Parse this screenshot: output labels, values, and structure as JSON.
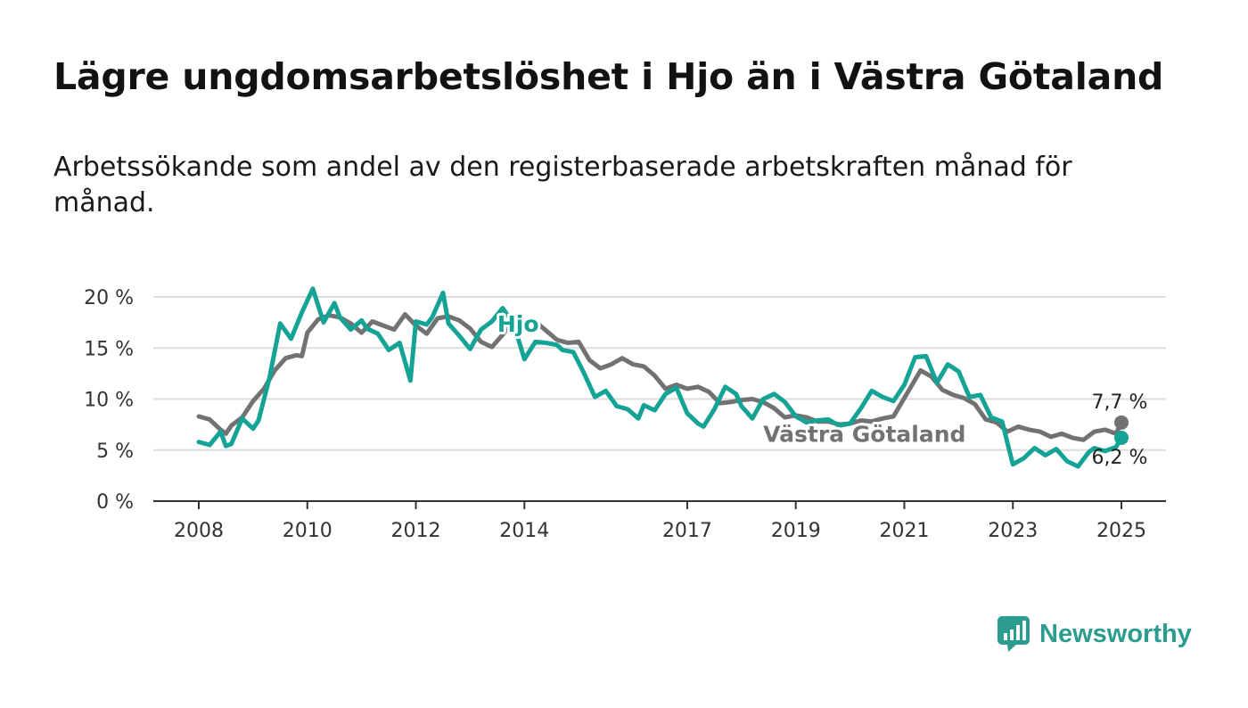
{
  "title": "Lägre ungdomsarbetslöshet i Hjo än i Västra Götaland",
  "subtitle": "Arbetssökande som andel av den registerbaserade arbetskraften månad för månad.",
  "brand": {
    "name": "Newsworthy",
    "color": "#2a9d8f",
    "icon": "bar-chart-speech-bubble-icon"
  },
  "colors": {
    "hjo": "#14a395",
    "vg": "#727272",
    "grid": "#dddddd",
    "axis": "#333333"
  },
  "chart_data": {
    "type": "line",
    "title": "Lägre ungdomsarbetslöshet i Hjo än i Västra Götaland",
    "xlabel": "",
    "ylabel": "",
    "x_range": [
      2008.0,
      2025.0
    ],
    "ylim": [
      0,
      20
    ],
    "y_ticks": [
      0,
      5,
      10,
      15,
      20
    ],
    "y_tick_labels": [
      "0 %",
      "5 %",
      "10 %",
      "15 %",
      "20 %"
    ],
    "x_ticks": [
      2008,
      2010,
      2012,
      2014,
      2017,
      2019,
      2021,
      2023,
      2025
    ],
    "x_tick_labels": [
      "2008",
      "2010",
      "2012",
      "2014",
      "2017",
      "2019",
      "2021",
      "2023",
      "2025"
    ],
    "grid": true,
    "series": [
      {
        "name": "Västra Götaland",
        "label": "Västra Götaland",
        "end_label": "7,7 %",
        "points": [
          [
            2008.0,
            8.3
          ],
          [
            2008.2,
            8.0
          ],
          [
            2008.4,
            7.0
          ],
          [
            2008.5,
            6.6
          ],
          [
            2008.6,
            7.4
          ],
          [
            2008.8,
            8.2
          ],
          [
            2009.0,
            9.8
          ],
          [
            2009.2,
            11.0
          ],
          [
            2009.4,
            12.8
          ],
          [
            2009.6,
            14.0
          ],
          [
            2009.8,
            14.3
          ],
          [
            2009.9,
            14.2
          ],
          [
            2010.0,
            16.5
          ],
          [
            2010.2,
            17.8
          ],
          [
            2010.4,
            18.2
          ],
          [
            2010.6,
            18.0
          ],
          [
            2010.8,
            17.4
          ],
          [
            2011.0,
            16.5
          ],
          [
            2011.2,
            17.6
          ],
          [
            2011.4,
            17.2
          ],
          [
            2011.6,
            16.8
          ],
          [
            2011.8,
            18.3
          ],
          [
            2012.0,
            17.2
          ],
          [
            2012.2,
            16.4
          ],
          [
            2012.4,
            17.9
          ],
          [
            2012.6,
            18.1
          ],
          [
            2012.8,
            17.7
          ],
          [
            2013.0,
            16.9
          ],
          [
            2013.2,
            15.6
          ],
          [
            2013.4,
            15.1
          ],
          [
            2013.6,
            16.3
          ],
          [
            2013.8,
            17.7
          ],
          [
            2014.0,
            17.4
          ],
          [
            2014.2,
            17.6
          ],
          [
            2014.4,
            16.7
          ],
          [
            2014.6,
            15.8
          ],
          [
            2014.8,
            15.5
          ],
          [
            2015.0,
            15.6
          ],
          [
            2015.2,
            13.8
          ],
          [
            2015.4,
            13.0
          ],
          [
            2015.6,
            13.4
          ],
          [
            2015.8,
            14.0
          ],
          [
            2016.0,
            13.4
          ],
          [
            2016.2,
            13.2
          ],
          [
            2016.4,
            12.3
          ],
          [
            2016.6,
            11.0
          ],
          [
            2016.8,
            11.4
          ],
          [
            2017.0,
            11.0
          ],
          [
            2017.2,
            11.2
          ],
          [
            2017.4,
            10.7
          ],
          [
            2017.6,
            9.6
          ],
          [
            2017.8,
            9.7
          ],
          [
            2018.0,
            9.9
          ],
          [
            2018.2,
            10.0
          ],
          [
            2018.4,
            9.7
          ],
          [
            2018.6,
            9.1
          ],
          [
            2018.8,
            8.2
          ],
          [
            2019.0,
            8.4
          ],
          [
            2019.2,
            8.2
          ],
          [
            2019.4,
            7.8
          ],
          [
            2019.6,
            7.8
          ],
          [
            2019.8,
            7.5
          ],
          [
            2020.0,
            7.6
          ],
          [
            2020.2,
            7.9
          ],
          [
            2020.4,
            7.8
          ],
          [
            2020.6,
            8.1
          ],
          [
            2020.8,
            8.3
          ],
          [
            2020.9,
            9.2
          ],
          [
            2021.1,
            11.0
          ],
          [
            2021.3,
            12.8
          ],
          [
            2021.5,
            12.2
          ],
          [
            2021.7,
            10.9
          ],
          [
            2021.9,
            10.4
          ],
          [
            2022.1,
            10.1
          ],
          [
            2022.3,
            9.5
          ],
          [
            2022.5,
            8.0
          ],
          [
            2022.7,
            7.7
          ],
          [
            2022.9,
            6.8
          ],
          [
            2023.1,
            7.3
          ],
          [
            2023.3,
            7.0
          ],
          [
            2023.5,
            6.8
          ],
          [
            2023.7,
            6.3
          ],
          [
            2023.9,
            6.6
          ],
          [
            2024.1,
            6.2
          ],
          [
            2024.3,
            6.0
          ],
          [
            2024.5,
            6.8
          ],
          [
            2024.7,
            7.0
          ],
          [
            2024.9,
            6.6
          ],
          [
            2025.0,
            7.7
          ]
        ]
      },
      {
        "name": "Hjo",
        "label": "Hjo",
        "end_label": "6,2 %",
        "points": [
          [
            2008.0,
            5.8
          ],
          [
            2008.2,
            5.5
          ],
          [
            2008.4,
            6.8
          ],
          [
            2008.5,
            5.4
          ],
          [
            2008.6,
            5.6
          ],
          [
            2008.8,
            8.1
          ],
          [
            2009.0,
            7.1
          ],
          [
            2009.1,
            7.9
          ],
          [
            2009.3,
            12.0
          ],
          [
            2009.5,
            17.4
          ],
          [
            2009.7,
            15.9
          ],
          [
            2009.9,
            18.5
          ],
          [
            2010.1,
            20.8
          ],
          [
            2010.3,
            17.5
          ],
          [
            2010.5,
            19.4
          ],
          [
            2010.6,
            18.0
          ],
          [
            2010.8,
            16.8
          ],
          [
            2011.0,
            17.7
          ],
          [
            2011.1,
            16.9
          ],
          [
            2011.3,
            16.4
          ],
          [
            2011.5,
            14.8
          ],
          [
            2011.7,
            15.5
          ],
          [
            2011.9,
            11.8
          ],
          [
            2012.0,
            17.6
          ],
          [
            2012.2,
            17.3
          ],
          [
            2012.3,
            18.0
          ],
          [
            2012.5,
            20.4
          ],
          [
            2012.6,
            17.4
          ],
          [
            2012.8,
            16.2
          ],
          [
            2013.0,
            14.9
          ],
          [
            2013.2,
            16.8
          ],
          [
            2013.4,
            17.6
          ],
          [
            2013.6,
            18.9
          ],
          [
            2013.8,
            17.4
          ],
          [
            2014.0,
            13.9
          ],
          [
            2014.2,
            15.6
          ],
          [
            2014.4,
            15.5
          ],
          [
            2014.6,
            15.3
          ],
          [
            2014.7,
            14.8
          ],
          [
            2014.9,
            14.6
          ],
          [
            2015.1,
            12.5
          ],
          [
            2015.3,
            10.2
          ],
          [
            2015.5,
            10.8
          ],
          [
            2015.7,
            9.3
          ],
          [
            2015.9,
            9.0
          ],
          [
            2016.1,
            8.1
          ],
          [
            2016.2,
            9.4
          ],
          [
            2016.4,
            8.9
          ],
          [
            2016.6,
            10.5
          ],
          [
            2016.8,
            11.1
          ],
          [
            2017.0,
            8.6
          ],
          [
            2017.2,
            7.6
          ],
          [
            2017.3,
            7.3
          ],
          [
            2017.5,
            9.0
          ],
          [
            2017.7,
            11.2
          ],
          [
            2017.9,
            10.5
          ],
          [
            2018.0,
            9.3
          ],
          [
            2018.2,
            8.1
          ],
          [
            2018.4,
            10.0
          ],
          [
            2018.6,
            10.5
          ],
          [
            2018.8,
            9.7
          ],
          [
            2019.0,
            8.3
          ],
          [
            2019.2,
            7.7
          ],
          [
            2019.4,
            7.9
          ],
          [
            2019.6,
            8.0
          ],
          [
            2019.8,
            7.4
          ],
          [
            2020.0,
            7.6
          ],
          [
            2020.2,
            9.1
          ],
          [
            2020.4,
            10.8
          ],
          [
            2020.6,
            10.2
          ],
          [
            2020.8,
            9.8
          ],
          [
            2021.0,
            11.4
          ],
          [
            2021.2,
            14.1
          ],
          [
            2021.4,
            14.2
          ],
          [
            2021.6,
            11.6
          ],
          [
            2021.8,
            13.4
          ],
          [
            2022.0,
            12.7
          ],
          [
            2022.2,
            10.2
          ],
          [
            2022.4,
            10.4
          ],
          [
            2022.6,
            8.2
          ],
          [
            2022.8,
            7.8
          ],
          [
            2023.0,
            3.6
          ],
          [
            2023.2,
            4.2
          ],
          [
            2023.4,
            5.2
          ],
          [
            2023.6,
            4.5
          ],
          [
            2023.8,
            5.1
          ],
          [
            2024.0,
            3.9
          ],
          [
            2024.2,
            3.4
          ],
          [
            2024.4,
            4.8
          ],
          [
            2024.5,
            5.2
          ],
          [
            2024.7,
            4.9
          ],
          [
            2024.9,
            5.3
          ],
          [
            2025.0,
            6.2
          ]
        ]
      }
    ]
  }
}
